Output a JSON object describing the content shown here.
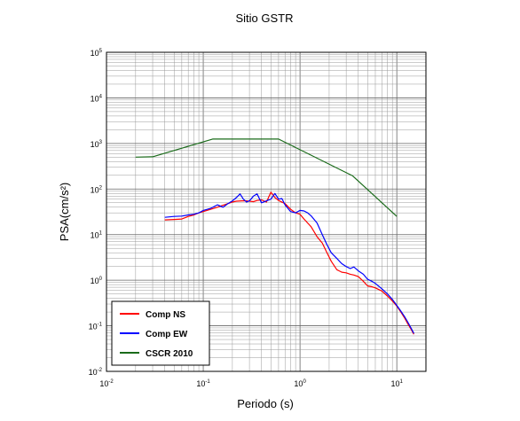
{
  "chart_data": {
    "type": "line",
    "title": "Sitio GSTR",
    "xlabel": "Periodo (s)",
    "ylabel": "PSA(cm/s²)",
    "xscale": "log",
    "yscale": "log",
    "xlim": [
      0.01,
      20
    ],
    "ylim": [
      0.01,
      100000
    ],
    "x_ticks": [
      {
        "base": "10",
        "exp": "-2",
        "value": 0.01
      },
      {
        "base": "10",
        "exp": "-1",
        "value": 0.1
      },
      {
        "base": "10",
        "exp": "0",
        "value": 1
      },
      {
        "base": "10",
        "exp": "1",
        "value": 10
      }
    ],
    "y_ticks": [
      {
        "base": "10",
        "exp": "-2",
        "value": 0.01
      },
      {
        "base": "10",
        "exp": "-1",
        "value": 0.1
      },
      {
        "base": "10",
        "exp": "0",
        "value": 1
      },
      {
        "base": "10",
        "exp": "1",
        "value": 10
      },
      {
        "base": "10",
        "exp": "2",
        "value": 100
      },
      {
        "base": "10",
        "exp": "3",
        "value": 1000
      },
      {
        "base": "10",
        "exp": "4",
        "value": 10000
      },
      {
        "base": "10",
        "exp": "5",
        "value": 100000
      }
    ],
    "grid": true,
    "legend_position": "bottom-left",
    "series": [
      {
        "name": "Comp NS",
        "color": "#ff0000",
        "points": [
          [
            0.04,
            21
          ],
          [
            0.05,
            21.5
          ],
          [
            0.06,
            22
          ],
          [
            0.07,
            25
          ],
          [
            0.08,
            27
          ],
          [
            0.09,
            30
          ],
          [
            0.1,
            32
          ],
          [
            0.12,
            36
          ],
          [
            0.14,
            40
          ],
          [
            0.16,
            44
          ],
          [
            0.18,
            48
          ],
          [
            0.2,
            52
          ],
          [
            0.22,
            54
          ],
          [
            0.25,
            55
          ],
          [
            0.28,
            55
          ],
          [
            0.3,
            54
          ],
          [
            0.33,
            53
          ],
          [
            0.36,
            56
          ],
          [
            0.4,
            58
          ],
          [
            0.45,
            52
          ],
          [
            0.5,
            85
          ],
          [
            0.55,
            65
          ],
          [
            0.6,
            56
          ],
          [
            0.7,
            48
          ],
          [
            0.8,
            36
          ],
          [
            0.9,
            30
          ],
          [
            1.0,
            28
          ],
          [
            1.1,
            22
          ],
          [
            1.2,
            18
          ],
          [
            1.3,
            15
          ],
          [
            1.5,
            9
          ],
          [
            1.7,
            6.5
          ],
          [
            1.9,
            4.0
          ],
          [
            2.1,
            2.6
          ],
          [
            2.4,
            1.7
          ],
          [
            2.7,
            1.5
          ],
          [
            3.0,
            1.45
          ],
          [
            3.3,
            1.35
          ],
          [
            3.6,
            1.3
          ],
          [
            4.0,
            1.2
          ],
          [
            4.5,
            0.95
          ],
          [
            5.0,
            0.75
          ],
          [
            5.5,
            0.72
          ],
          [
            6.0,
            0.68
          ],
          [
            7.0,
            0.58
          ],
          [
            8.0,
            0.45
          ],
          [
            9.0,
            0.35
          ],
          [
            10,
            0.27
          ],
          [
            11,
            0.2
          ],
          [
            12,
            0.15
          ],
          [
            13,
            0.11
          ],
          [
            14,
            0.085
          ],
          [
            15,
            0.065
          ]
        ]
      },
      {
        "name": "Comp EW",
        "color": "#0000ff",
        "points": [
          [
            0.04,
            24
          ],
          [
            0.05,
            25
          ],
          [
            0.06,
            25.5
          ],
          [
            0.07,
            27
          ],
          [
            0.08,
            28
          ],
          [
            0.09,
            30
          ],
          [
            0.1,
            34
          ],
          [
            0.12,
            38
          ],
          [
            0.14,
            45
          ],
          [
            0.16,
            40
          ],
          [
            0.18,
            48
          ],
          [
            0.2,
            55
          ],
          [
            0.22,
            65
          ],
          [
            0.24,
            78
          ],
          [
            0.26,
            60
          ],
          [
            0.28,
            52
          ],
          [
            0.3,
            55
          ],
          [
            0.33,
            70
          ],
          [
            0.36,
            78
          ],
          [
            0.4,
            50
          ],
          [
            0.45,
            55
          ],
          [
            0.5,
            60
          ],
          [
            0.55,
            80
          ],
          [
            0.6,
            60
          ],
          [
            0.65,
            62
          ],
          [
            0.7,
            45
          ],
          [
            0.8,
            32
          ],
          [
            0.9,
            30
          ],
          [
            1.0,
            34
          ],
          [
            1.1,
            33
          ],
          [
            1.2,
            30
          ],
          [
            1.3,
            26
          ],
          [
            1.5,
            18
          ],
          [
            1.7,
            10
          ],
          [
            1.9,
            6.0
          ],
          [
            2.1,
            4.0
          ],
          [
            2.4,
            3.0
          ],
          [
            2.7,
            2.3
          ],
          [
            3.0,
            2.0
          ],
          [
            3.3,
            1.8
          ],
          [
            3.6,
            1.95
          ],
          [
            4.0,
            1.6
          ],
          [
            4.5,
            1.35
          ],
          [
            5.0,
            1.05
          ],
          [
            5.5,
            0.95
          ],
          [
            6.0,
            0.85
          ],
          [
            7.0,
            0.65
          ],
          [
            8.0,
            0.5
          ],
          [
            9.0,
            0.38
          ],
          [
            10,
            0.28
          ],
          [
            11,
            0.21
          ],
          [
            12,
            0.16
          ],
          [
            13,
            0.12
          ],
          [
            14,
            0.09
          ],
          [
            15,
            0.068
          ]
        ]
      },
      {
        "name": "CSCR 2010",
        "color": "#1a6b1a",
        "points": [
          [
            0.02,
            500
          ],
          [
            0.03,
            510
          ],
          [
            0.125,
            1250
          ],
          [
            0.6,
            1250
          ],
          [
            3.5,
            195
          ],
          [
            10,
            25
          ]
        ]
      }
    ]
  }
}
